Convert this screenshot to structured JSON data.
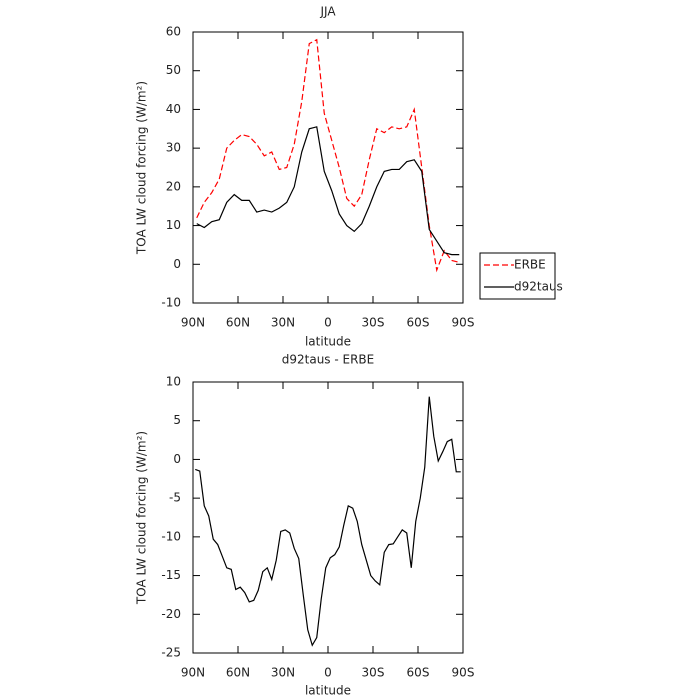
{
  "chart_data": [
    {
      "type": "line",
      "title": "JJA",
      "xlabel": "latitude",
      "ylabel": "TOA LW cloud forcing (W/m²)",
      "x": [
        87.5,
        82.5,
        77.5,
        72.5,
        67.5,
        62.5,
        57.5,
        52.5,
        47.5,
        42.5,
        37.5,
        32.5,
        27.5,
        22.5,
        17.5,
        12.5,
        7.5,
        2.5,
        -2.5,
        -7.5,
        -12.5,
        -17.5,
        -22.5,
        -27.5,
        -32.5,
        -37.5,
        -42.5,
        -47.5,
        -52.5,
        -57.5,
        -62.5,
        -67.5,
        -72.5,
        -77.5,
        -82.5,
        -87.5
      ],
      "series": [
        {
          "name": "ERBE",
          "color": "#ff0000",
          "style": "dashed",
          "values": [
            12,
            16,
            18.5,
            22,
            30,
            32,
            33.5,
            33,
            31,
            28,
            29,
            24.5,
            25,
            31,
            42,
            57,
            58,
            39,
            32,
            25,
            17,
            15,
            18,
            27,
            35,
            34,
            35.5,
            35,
            35.5,
            40,
            25,
            10,
            -1.5,
            3.5,
            1,
            0.5
          ]
        },
        {
          "name": "d92taus",
          "color": "#000000",
          "style": "solid",
          "values": [
            10.5,
            9.5,
            11,
            11.5,
            16,
            18,
            16.5,
            16.5,
            13.5,
            14,
            13.5,
            14.5,
            16,
            20,
            29,
            35,
            35.5,
            24,
            19,
            13,
            10,
            8.5,
            10.5,
            15,
            20,
            24,
            24.5,
            24.5,
            26.5,
            27,
            24,
            9,
            6,
            3,
            2.5,
            2.5
          ]
        }
      ],
      "xlim": [
        90,
        -90
      ],
      "xticks": [
        {
          "value": 90,
          "label": "90N"
        },
        {
          "value": 60,
          "label": "60N"
        },
        {
          "value": 30,
          "label": "30N"
        },
        0,
        {
          "value": -30,
          "label": "30S"
        },
        {
          "value": -60,
          "label": "60S"
        },
        {
          "value": -90,
          "label": "90S"
        }
      ],
      "ylim": [
        -10,
        60
      ],
      "yticks": [
        -10,
        0,
        10,
        20,
        30,
        40,
        50,
        60
      ],
      "legend": "right"
    },
    {
      "type": "line",
      "title": "d92taus - ERBE",
      "xlabel": "latitude",
      "ylabel": "TOA LW cloud forcing (W/m²)",
      "x": [
        88.5,
        85.5,
        82.5,
        79.5,
        76.5,
        73.5,
        70.5,
        67.5,
        64.5,
        61.5,
        58.5,
        55.5,
        52.5,
        49.5,
        46.5,
        43.5,
        40.5,
        37.5,
        34.5,
        31.5,
        28.5,
        25.5,
        22.5,
        19.5,
        16.5,
        13.5,
        10.5,
        7.5,
        4.5,
        1.5,
        -1.5,
        -4.5,
        -7.5,
        -10.5,
        -13.5,
        -16.5,
        -19.5,
        -22.5,
        -25.5,
        -28.5,
        -31.5,
        -34.5,
        -37.5,
        -40.5,
        -43.5,
        -46.5,
        -49.5,
        -52.5,
        -55.5,
        -58.5,
        -61.5,
        -64.5,
        -67.5,
        -70.5,
        -73.5,
        -76.5,
        -79.5,
        -82.5,
        -85.5,
        -88.5
      ],
      "series": [
        {
          "color": "#000000",
          "style": "solid",
          "values": [
            -1.3,
            -1.5,
            -6,
            -7.3,
            -10.3,
            -11,
            -12.5,
            -14,
            -14.2,
            -16.8,
            -16.5,
            -17.2,
            -18.4,
            -18.2,
            -16.9,
            -14.5,
            -14,
            -15.5,
            -13,
            -9.3,
            -9.1,
            -9.5,
            -11.5,
            -12.8,
            -17.5,
            -22,
            -24,
            -23,
            -18,
            -14,
            -12.7,
            -12.3,
            -11.3,
            -8.5,
            -6,
            -6.3,
            -8,
            -11,
            -13,
            -15,
            -15.7,
            -16.2,
            -12,
            -11,
            -10.9,
            -10,
            -9.1,
            -9.5,
            -14,
            -8,
            -5,
            -1,
            8.1,
            3,
            -0.2,
            1,
            2.3,
            2.6,
            -1.6,
            -1.6
          ]
        }
      ],
      "xlim": [
        90,
        -90
      ],
      "xticks": [
        {
          "value": 90,
          "label": "90N"
        },
        {
          "value": 60,
          "label": "60N"
        },
        {
          "value": 30,
          "label": "30N"
        },
        0,
        {
          "value": -30,
          "label": "30S"
        },
        {
          "value": -60,
          "label": "60S"
        },
        {
          "value": -90,
          "label": "90S"
        }
      ],
      "ylim": [
        -25,
        10
      ],
      "yticks": [
        -25,
        -20,
        -15,
        -10,
        -5,
        0,
        5,
        10
      ]
    }
  ]
}
